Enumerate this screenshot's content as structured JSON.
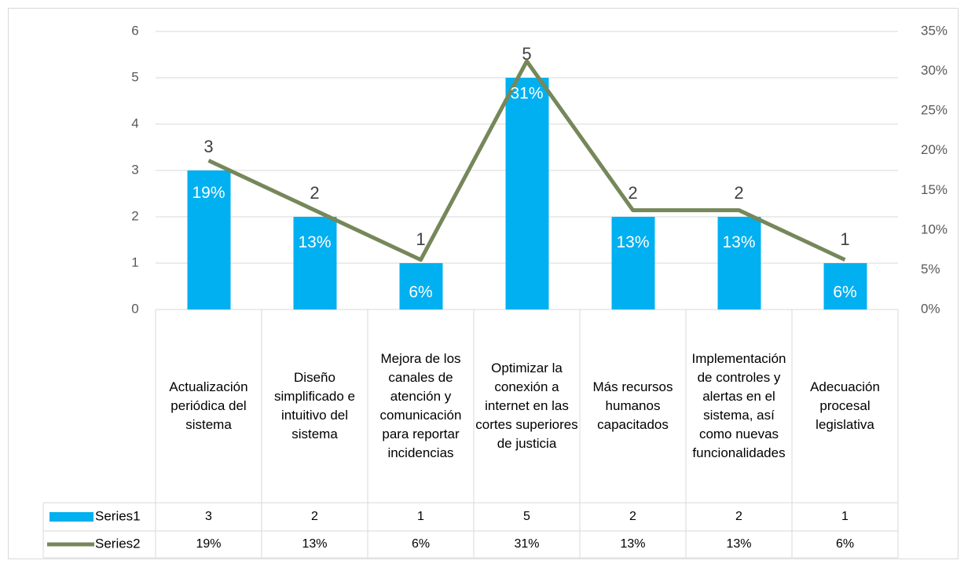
{
  "chart_data": {
    "type": "bar",
    "categories": [
      "Actualización periódica del sistema",
      "Diseño simplificado e intuitivo del sistema",
      "Mejora de los canales de atención y comunicación para reportar incidencias",
      "Optimizar la conexión a internet en las cortes superiores de justicia",
      "Más recursos humanos capacitados",
      "Implementación de controles y alertas en el sistema, así como nuevas funcionalidades",
      "Adecuación procesal legislativa"
    ],
    "series": [
      {
        "name": "Series1",
        "type": "bar",
        "color": "#00b0f0",
        "values": [
          3,
          2,
          1,
          5,
          2,
          2,
          1
        ]
      },
      {
        "name": "Series2",
        "type": "line",
        "axis": "y2",
        "color": "#76875a",
        "values": [
          18.75,
          12.5,
          6.25,
          31.25,
          12.5,
          12.5,
          6.25
        ],
        "value_labels": [
          "19%",
          "13%",
          "6%",
          "31%",
          "13%",
          "13%",
          "6%"
        ]
      }
    ],
    "ylim": [
      0,
      6
    ],
    "yticks": [
      0,
      1,
      2,
      3,
      4,
      5,
      6
    ],
    "y2lim": [
      0,
      35
    ],
    "y2ticks": [
      {
        "value": 0,
        "label": "0%"
      },
      {
        "value": 5,
        "label": "5%"
      },
      {
        "value": 10,
        "label": "10%"
      },
      {
        "value": 15,
        "label": "15%"
      },
      {
        "value": 20,
        "label": "20%"
      },
      {
        "value": 25,
        "label": "25%"
      },
      {
        "value": 30,
        "label": "30%"
      },
      {
        "value": 35,
        "label": "35%"
      }
    ],
    "grid": true,
    "data_table": true
  }
}
